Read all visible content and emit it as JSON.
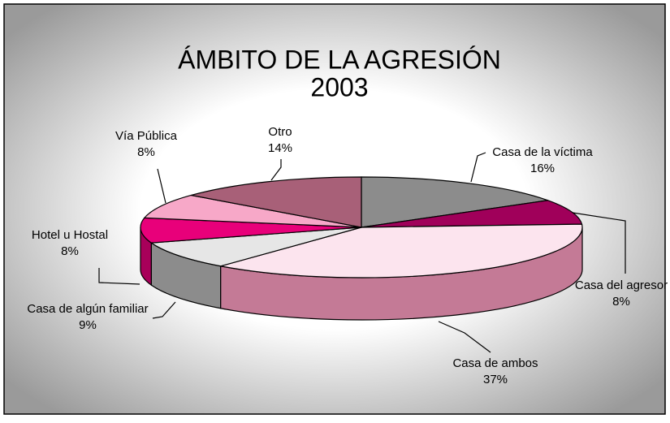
{
  "chart_data": {
    "type": "pie3d",
    "title": "ÁMBITO DE LA AGRESIÓN",
    "subtitle": "2003",
    "categories": [
      "Casa de la víctima",
      "Casa del agresor",
      "Casa de ambos",
      "Casa de algún familiar",
      "Hotel u Hostal",
      "Vía Pública",
      "Otro"
    ],
    "values": [
      16,
      8,
      37,
      9,
      8,
      8,
      14
    ],
    "value_labels": [
      "16%",
      "8%",
      "37%",
      "9%",
      "8%",
      "8%",
      "14%"
    ],
    "colors": [
      "#8c8c8c",
      "#a0005a",
      "#fce4ee",
      "#e6e6e6",
      "#e8007a",
      "#f7a8c8",
      "#a86078"
    ],
    "side_colors": [
      "#6e6e6e",
      "#70003e",
      "#c47a96",
      "#8c8c8c",
      "#a8005a",
      "#c07896",
      "#7a4056"
    ]
  }
}
